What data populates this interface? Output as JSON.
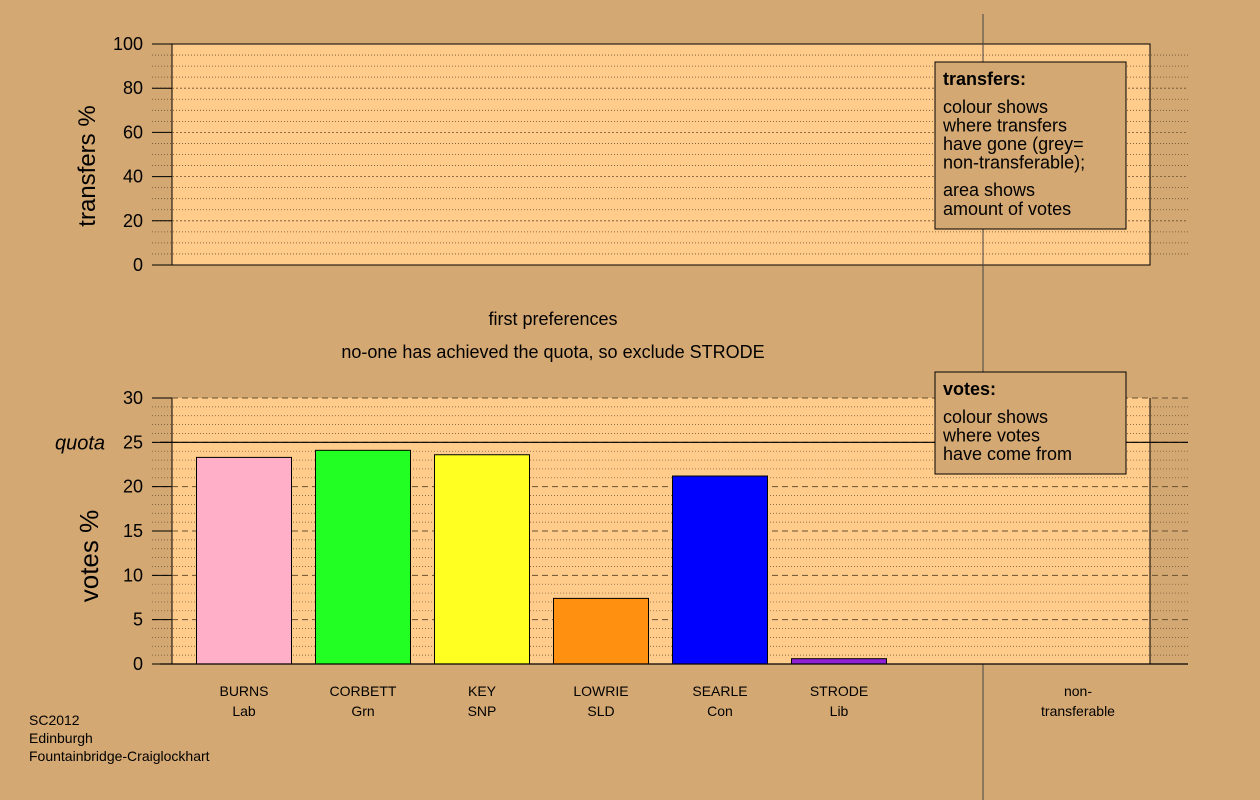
{
  "transfers_chart": {
    "ylabel": "transfers %",
    "ylim": [
      0,
      100
    ],
    "yticks": [
      "0",
      "20",
      "40",
      "60",
      "80",
      "100"
    ],
    "legend": {
      "title": "transfers:",
      "lines1": [
        "colour shows",
        "where transfers",
        "have gone (grey=",
        "non-transferable);"
      ],
      "lines2": [
        "area shows",
        "amount of votes"
      ]
    }
  },
  "stage_text": {
    "title": "first preferences",
    "subtitle": "no-one has achieved the quota, so exclude STRODE"
  },
  "chart_data": {
    "type": "bar",
    "ylabel": "votes %",
    "ylim": [
      0,
      30
    ],
    "yticks": [
      "0",
      "5",
      "10",
      "15",
      "20",
      "25",
      "30"
    ],
    "quota": 25,
    "quota_label": "quota",
    "categories": [
      {
        "name": "BURNS",
        "party": "Lab"
      },
      {
        "name": "CORBETT",
        "party": "Grn"
      },
      {
        "name": "KEY",
        "party": "SNP"
      },
      {
        "name": "LOWRIE",
        "party": "SLD"
      },
      {
        "name": "SEARLE",
        "party": "Con"
      },
      {
        "name": "STRODE",
        "party": "Lib"
      }
    ],
    "values": [
      23.3,
      24.1,
      23.6,
      7.4,
      21.2,
      0.6
    ],
    "colors": [
      "#ffb0c8",
      "#22ff22",
      "#ffff22",
      "#ff9010",
      "#0000ff",
      "#8f20d8"
    ],
    "nontransferable": {
      "line1": "non-",
      "line2": "transferable",
      "value": 0
    },
    "legend": {
      "title": "votes:",
      "lines1": [
        "colour shows",
        "where votes",
        "have come from"
      ]
    }
  },
  "footer": {
    "line1": "SC2012",
    "line2": "Edinburgh",
    "line3": "Fountainbridge-Craiglockhart"
  }
}
